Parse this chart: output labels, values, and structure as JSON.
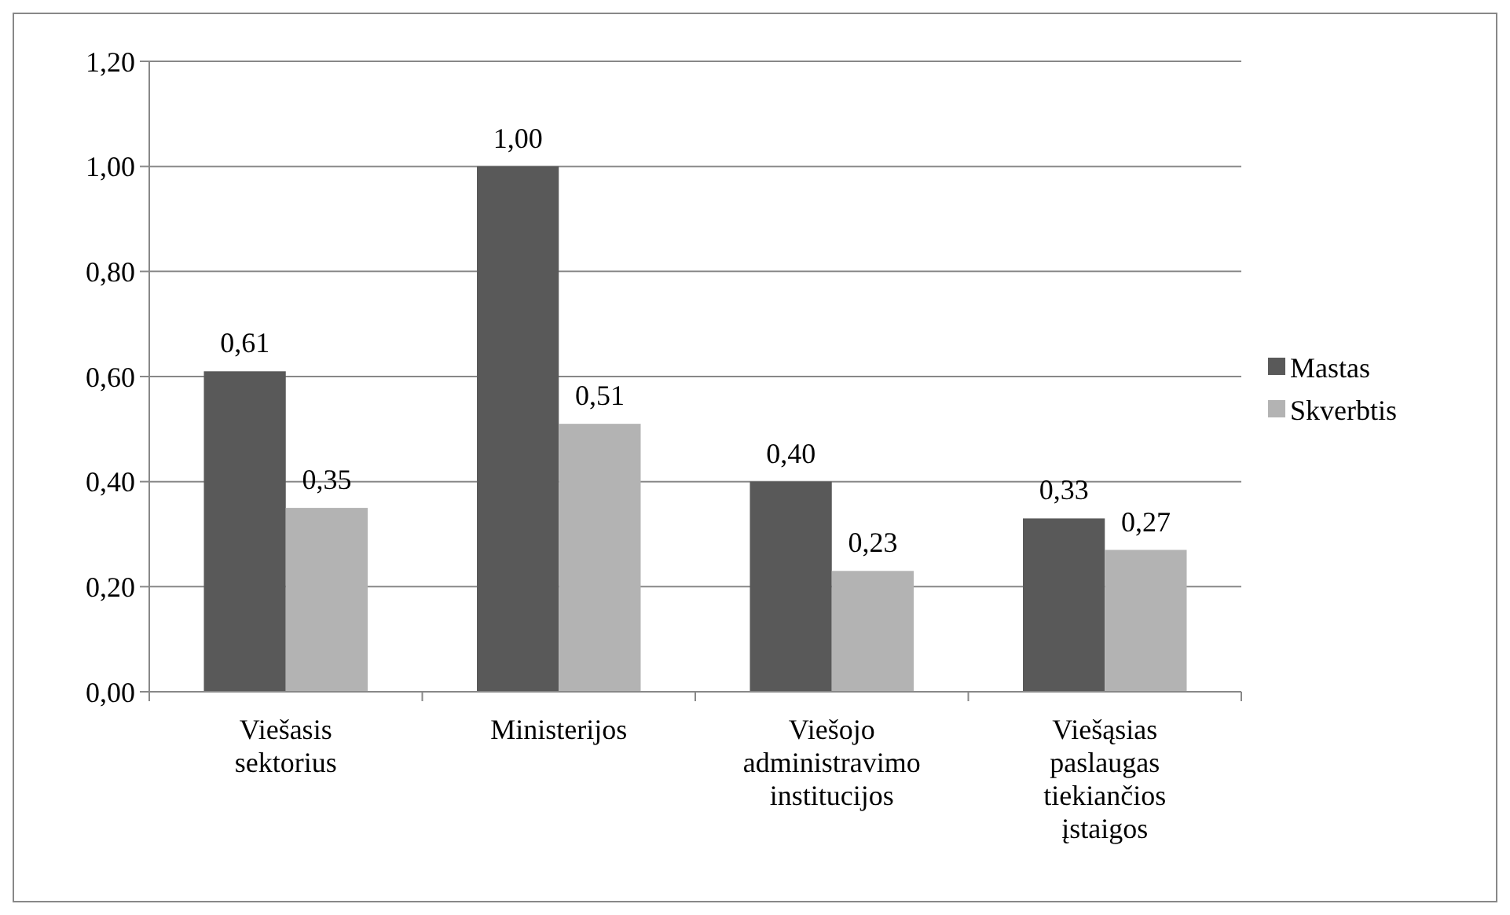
{
  "chart_data": {
    "type": "bar",
    "categories": [
      "Viešasis sektorius",
      "Ministerijos",
      "Viešojo administravimo institucijos",
      "Viešąsias paslaugas tiekiančios įstaigos"
    ],
    "series": [
      {
        "name": "Mastas",
        "color": "#595959",
        "values": [
          0.61,
          1.0,
          0.4,
          0.33
        ],
        "value_labels": [
          "0,61",
          "1,00",
          "0,40",
          "0,33"
        ]
      },
      {
        "name": "Skverbtis",
        "color": "#b3b3b3",
        "values": [
          0.35,
          0.51,
          0.23,
          0.27
        ],
        "value_labels": [
          "0,35",
          "0,51",
          "0,23",
          "0,27"
        ]
      }
    ],
    "ylim": [
      0,
      1.2
    ],
    "yticks": [
      {
        "value": 0,
        "label": "0,00"
      },
      {
        "value": 0.2,
        "label": "0,20"
      },
      {
        "value": 0.4,
        "label": "0,40"
      },
      {
        "value": 0.6,
        "label": "0,60"
      },
      {
        "value": 0.8,
        "label": "0,80"
      },
      {
        "value": 1.0,
        "label": "1,00"
      },
      {
        "value": 1.2,
        "label": "1,20"
      }
    ],
    "grid": "y",
    "legend": "right"
  }
}
